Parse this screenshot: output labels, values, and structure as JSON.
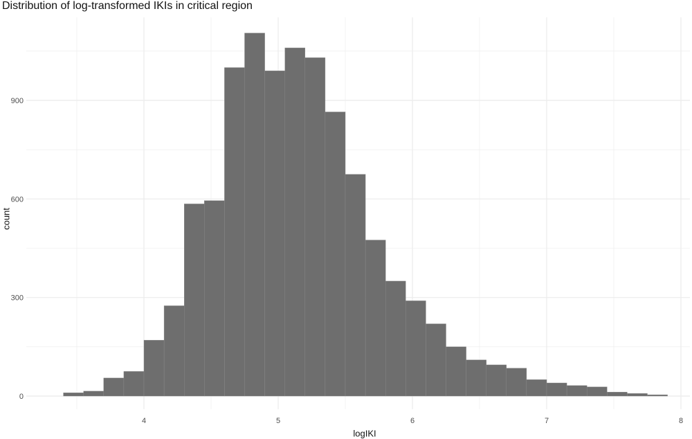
{
  "chart_data": {
    "type": "bar",
    "title": "Distribution of log-transformed IKIs in critical region",
    "xlabel": "logIKI",
    "ylabel": "count",
    "xlim": [
      3.33,
      8.0
    ],
    "ylim": [
      0,
      1150
    ],
    "grid": true,
    "legend": "none",
    "bar_color": "#6e6e6e",
    "grid_color": "#ebebeb",
    "x_ticks": [
      4,
      5,
      6,
      7,
      8
    ],
    "y_ticks": [
      0,
      300,
      600,
      900
    ],
    "bins": {
      "start": 3.4,
      "width": 0.15,
      "counts": [
        10,
        15,
        55,
        75,
        170,
        275,
        585,
        595,
        1000,
        1105,
        990,
        1060,
        1030,
        865,
        675,
        475,
        350,
        290,
        220,
        150,
        110,
        95,
        85,
        50,
        40,
        32,
        28,
        12,
        8,
        4
      ]
    }
  }
}
